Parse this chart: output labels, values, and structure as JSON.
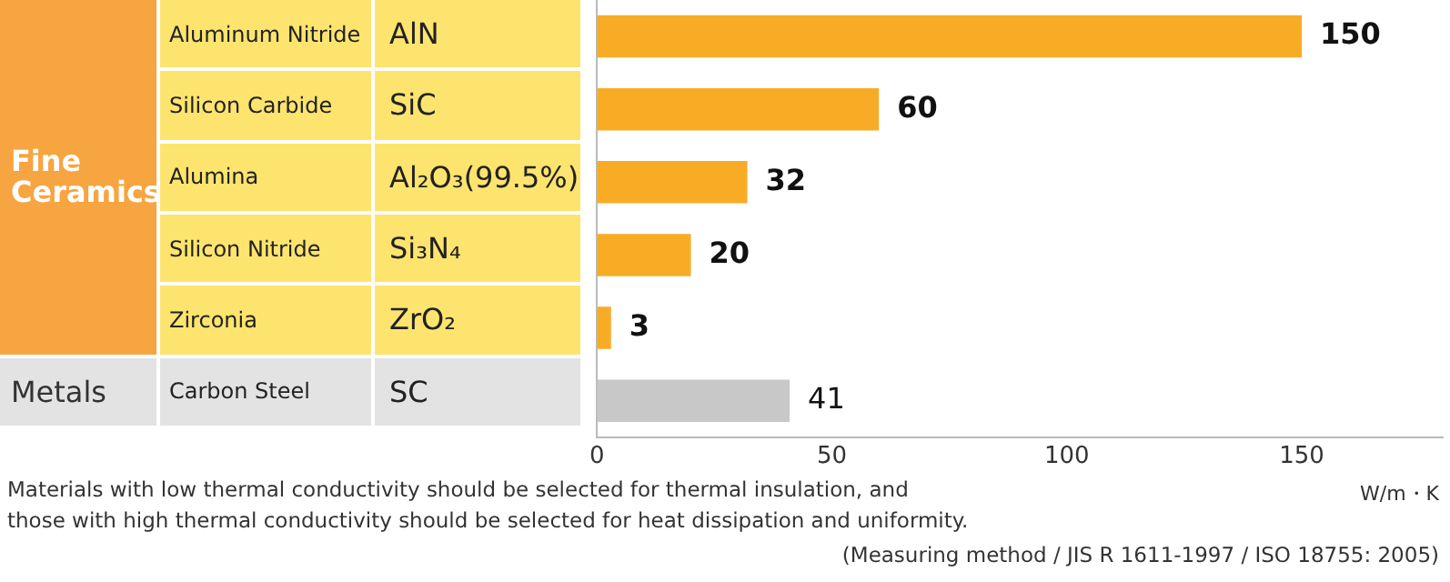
{
  "chart_data": {
    "type": "bar",
    "orientation": "horizontal",
    "categories": [
      "AlN",
      "SiC",
      "Al₂O₃(99.5%)",
      "Si₃N₄",
      "ZrO₂",
      "SC"
    ],
    "values": [
      150,
      60,
      32,
      20,
      3,
      41
    ],
    "colors": [
      "#f8ac26",
      "#f8ac26",
      "#f8ac26",
      "#f8ac26",
      "#f8ac26",
      "#c8c8c8"
    ],
    "xlim": [
      0,
      180
    ],
    "xticks": [
      0,
      50,
      100,
      150
    ],
    "xlabel": "W/m・K",
    "data_labels": true,
    "annotations": [
      "Aluminum Nitride",
      "Silicon Carbide",
      "Alumina",
      "Silicon Nitride",
      "Zirconia",
      "Carbon Steel",
      "Fine Ceramics",
      "Metals",
      "Materials with low thermal conductivity should be selected for thermal insulation, and",
      "those with high thermal conductivity should be selected for heat dissipation and uniformity.",
      "(Measuring method / JIS R 1611-1997 / ISO 18755: 2005)"
    ]
  }
}
